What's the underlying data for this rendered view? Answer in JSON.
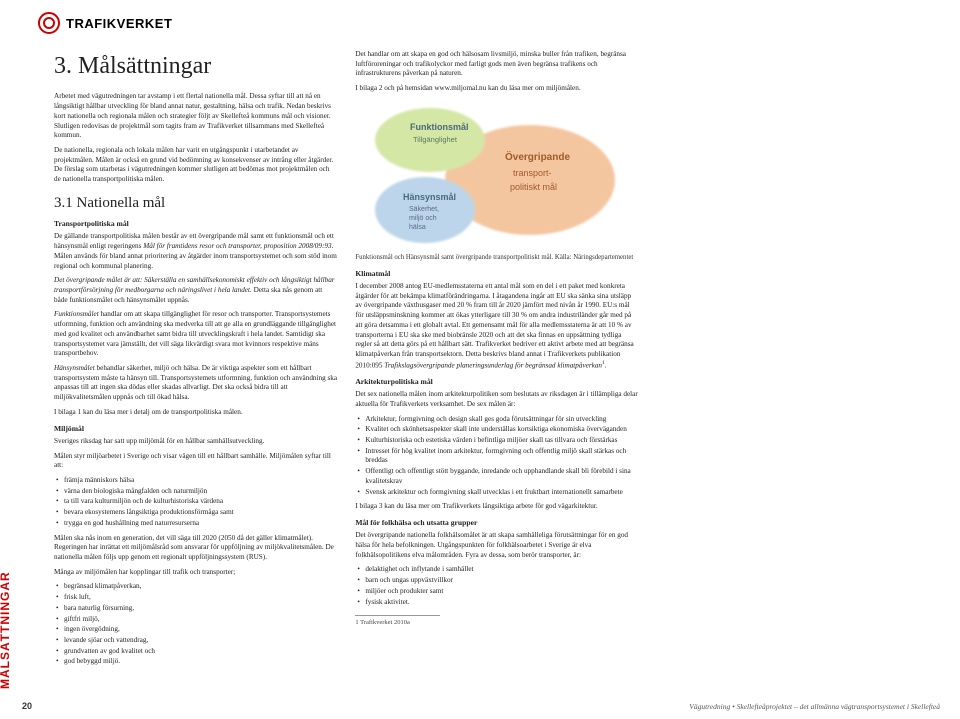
{
  "logo_text": "TRAFIKVERKET",
  "sidebar_label": "MÅLSÄTTNINGAR",
  "page_number": "20",
  "footer": "Vägutredning • Skellefteåprojektet – det allmänna vägtransportsystemet i Skellefteå",
  "chapter_title": "3. Målsättningar",
  "intro_p1": "Arbetet med vägutredningen tar avstamp i ett flertal nationella mål. Dessa syftar till att nå en långsiktigt hållbar utveckling för bland annat natur, gestaltning, hälsa och trafik. Nedan beskrivs kort nationella och regionala målen och strategier följt av Skellefteå kommuns mål och visioner. Slutligen redovisas de projektmål som tagits fram av Trafikverket tillsammans med Skellefteå kommun.",
  "intro_p2": "De nationella, regionala och lokala målen har varit en utgångspunkt i utarbetandet av projektmålen. Målen är också en grund vid bedömning av konsekvenser av intrång eller åtgärder. De förslag som utarbetas i vägutredningen kommer slutligen att bedömas mot projektmålen och de nationella transportpolitiska målen.",
  "section_3_1": "3.1   Nationella mål",
  "transport_head": "Transportpolitiska mål",
  "transport_p1a": "De gällande transportpolitiska målen består av ett övergripande mål samt ett funktionsmål och ett hänsynsmål enligt regeringens ",
  "transport_p1b": "Mål för framtidens resor och transporter, proposition 2008/09:93",
  "transport_p1c": ". Målen används för bland annat prioritering av åtgärder inom transportsystemet och som stöd inom regional och kommunal planering.",
  "transport_p2a": "Det övergripande målet är att: ",
  "transport_p2b": "Säkerställa en samhällsekonomiskt effektiv och långsiktigt hållbar transportförsörjning för medborgarna och näringslivet i hela landet.",
  "transport_p2c": " Detta ska nås genom att både funktionsmålet och hänsynsmålet uppnås.",
  "transport_p3a": "Funktionsmålet",
  "transport_p3b": " handlar om att skapa tillgänglighet för resor och transporter. Transportsystemets utformning, funktion och användning ska medverka till att ge alla en grundläggande tillgänglighet med god kvalitet och användbarhet samt bidra till utvecklingskraft i hela landet. Samtidigt ska transportsystemet vara jämställt, det vill säga likvärdigt svara mot kvinnors respektive mäns transportbehov.",
  "transport_p4a": "Hänsynsmålet",
  "transport_p4b": " behandlar säkerhet, miljö och hälsa. De är viktiga aspekter som ett hållbart transportsystem måste ta hänsyn till. Transportsystemets utformning, funktion och användning ska anpassas till att ingen ska dödas eller skadas allvarligt. Det ska också bidra till att miljökvalitetsmålen uppnås och till ökad hälsa.",
  "transport_p5": "I bilaga 1 kan du läsa mer i detalj om de transportpolitiska målen.",
  "miljo_head": "Miljömål",
  "miljo_p1": "Sveriges riksdag har satt upp miljömål för en hållbar samhällsutveckling.",
  "miljo_p2": "Målen styr miljöarbetet i Sverige och visar vägen till ett hållbart samhälle. Miljömålen syftar till att:",
  "miljo_list1": [
    "främja människors hälsa",
    "värna den biologiska mångfalden och naturmiljön",
    "ta till vara kulturmiljön och de kulturhistoriska värdena",
    "bevara ekosystemens långsiktiga produktionsförmåga samt",
    "trygga en god hushållning med naturresurserna"
  ],
  "miljo_p3": "Målen ska nås inom en generation, det vill säga till 2020 (2050 då det gäller klimatmålet). Regeringen har inrättat ett miljömålsråd som ansvarar för uppföljning av miljökvalitetsmålen. De nationella målen följs upp genom ett regionalt uppföljningssystem (RUS).",
  "miljo_p4": "Många av miljömålen har kopplingar till trafik och transporter;",
  "miljo_list2": [
    "begränsad klimatpåverkan,",
    "frisk luft,",
    "bara naturlig försurning,",
    "giftfri miljö,",
    "ingen övergödning,",
    "levande sjöar och vattendrag,",
    "grundvatten av god kvalitet och",
    "god bebyggd miljö."
  ],
  "miljo_p5": "Det handlar om att skapa en god och hälsosam livsmiljö, minska buller från trafiken, begränsa luftföroreningar och trafikolyckor med farligt gods men även begränsa trafikens och infrastrukturens påverkan på naturen.",
  "miljo_p6": "I bilaga 2 och på hemsidan www.miljomal.nu kan du läsa mer om miljömålen.",
  "fig": {
    "funktionsmal": "Funktionsmål",
    "funktionsmal_sub": "Tillgänglighet",
    "hansynsmal": "Hänsynsmål",
    "hansynsmal_sub": "Säkerhet,\nmiljö och\nhälsa",
    "overgripande": "Övergripande",
    "overgripande_sub": "transport-\npolitiskt mål",
    "caption": "Funktionsmål och Hänsynsmål samt övergripande transportpolitiskt mål. Källa: Näringsdepartementet",
    "colors": {
      "funk": "#d4e7a5",
      "hans": "#bcd5ea",
      "over": "#f4c6a0",
      "stroke": "#888888",
      "text": "#4a6a7a"
    }
  },
  "klimat_head": "Klimatmål",
  "klimat_p1": "I december 2008 antog EU-medlemsstaterna ett antal mål som en del i ett paket med konkreta åtgärder för att bekämpa klimatförändringarna. I åtagandena ingår att EU ska sänka sina utsläpp av övergripande växthusgaser med 20 % fram till år 2020 jämfört med nivån år 1990. EU:s mål för utsläppsminskning kommer att ökas ytterligare till 30 % om andra industriländer går med på att göra detsamma i ett globalt avtal. Ett gemensamt mål för alla medlemsstaterna är att 10 % av transporterna i EU ska ske med biobränsle 2020 och att det ska finnas en uppsättning tydliga regler så att detta görs på ett hållbart sätt. Trafikverket bedriver ett aktivt arbete med att begränsa klimatpåverkan från transportsektorn. Detta beskrivs bland annat i Trafikverkets publikation 2010:095 ",
  "klimat_p1b": "Trafikslagsövergripande planeringsunderlag för begränsad klimatpåverkan",
  "arkitektur_head": "Arkitekturpolitiska mål",
  "arkitektur_p1": "Det sex nationella målen inom arkitekturpolitiken som beslutats av riksdagen är i tillämpliga delar aktuella för Trafikverkets verksamhet. De sex målen är:",
  "arkitektur_list": [
    "Arkitektur, formgivning och design skall ges goda förutsättningar för sin utveckling",
    "Kvalitet och skönhetsaspekter skall inte underställas kortsiktiga ekonomiska överväganden",
    "Kulturhistoriska och estetiska värden i befintliga miljöer skall tas tillvara och förstärkas",
    "Intresset för hög kvalitet inom arkitektur, formgivning och offentlig miljö skall stärkas och breddas",
    "Offentligt och offentligt stött byggande, inredande och upphandlande skall bli förebild i sina kvalitetskrav",
    "Svensk arkitektur och formgivning skall utvecklas i ett fruktbart internationellt samarbete"
  ],
  "arkitektur_p2": "I bilaga 3 kan du läsa mer om Trafikverkets långsiktiga arbete för god vägarkitektur.",
  "folkhalsa_head": "Mål för folkhälsa och utsatta grupper",
  "folkhalsa_p1": "Det övergripande nationella folkhälsomålet är att skapa samhälleliga förutsättningar för en god hälsa för hela befolkningen. Utgångspunkten för folkhälsoarbetet i Sverige är elva folkhälsopolitikens elva målområden. Fyra av dessa, som berör transporter, är:",
  "folkhalsa_list": [
    "delaktighet och inflytande i samhället",
    "barn och ungas uppväxtvillkor",
    "miljöer och produkter samt",
    "fysisk aktivitet."
  ],
  "footnote": "1      Trafikverket 2010a"
}
